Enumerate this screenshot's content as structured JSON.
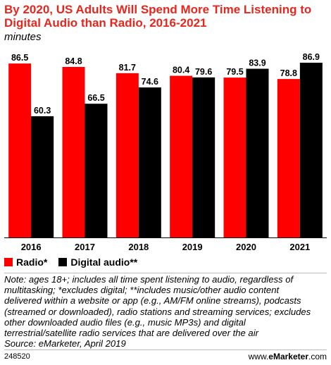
{
  "title": "By 2020, US Adults Will Spend More Time Listening to Digital Audio than Radio, 2016-2021",
  "subtitle": "minutes",
  "colors": {
    "radio": "#fe0000",
    "digital": "#000000",
    "title": "#e8261e",
    "gridline": "#c8c8c8"
  },
  "chart_data": {
    "type": "bar",
    "title": "By 2020, US Adults Will Spend More Time Listening to Digital Audio than Radio, 2016-2021",
    "ylabel": "minutes",
    "categories": [
      "2016",
      "2017",
      "2018",
      "2019",
      "2020",
      "2021"
    ],
    "series": [
      {
        "name": "Radio*",
        "values": [
          86.5,
          84.8,
          81.7,
          80.4,
          79.5,
          78.8
        ],
        "labels": [
          "86.5",
          "84.8",
          "81.7",
          "80.4",
          "79.5",
          "78.8"
        ]
      },
      {
        "name": "Digital audio**",
        "values": [
          60.3,
          66.5,
          74.6,
          79.6,
          83.9,
          86.9
        ],
        "labels": [
          "60.3",
          "66.5",
          "74.6",
          "79.6",
          "83.9",
          "86.9"
        ]
      }
    ],
    "ylim": [
      0,
      86.9
    ],
    "grid": false,
    "legend": "bottom-left"
  },
  "legend": {
    "radio": "Radio*",
    "digital": "Digital audio**"
  },
  "note_lines": [
    "Note: ages 18+; includes all time spent listening to audio, regardless of",
    "multitasking; *excludes digital; **includes music/other audio content",
    "delivered within a website or app (e.g., AM/FM online streams), podcasts",
    "(streamed or downloaded), radio stations and streaming services; excludes",
    "other downloaded audio files (e.g., music MP3s) and digital",
    "terrestrial/satellite radio services that are delivered over the air",
    "Source: eMarketer, April 2019"
  ],
  "footer": {
    "id": "248520",
    "brand_prefix": "www.",
    "brand_name": "eMarketer",
    "brand_suffix": ".com"
  }
}
